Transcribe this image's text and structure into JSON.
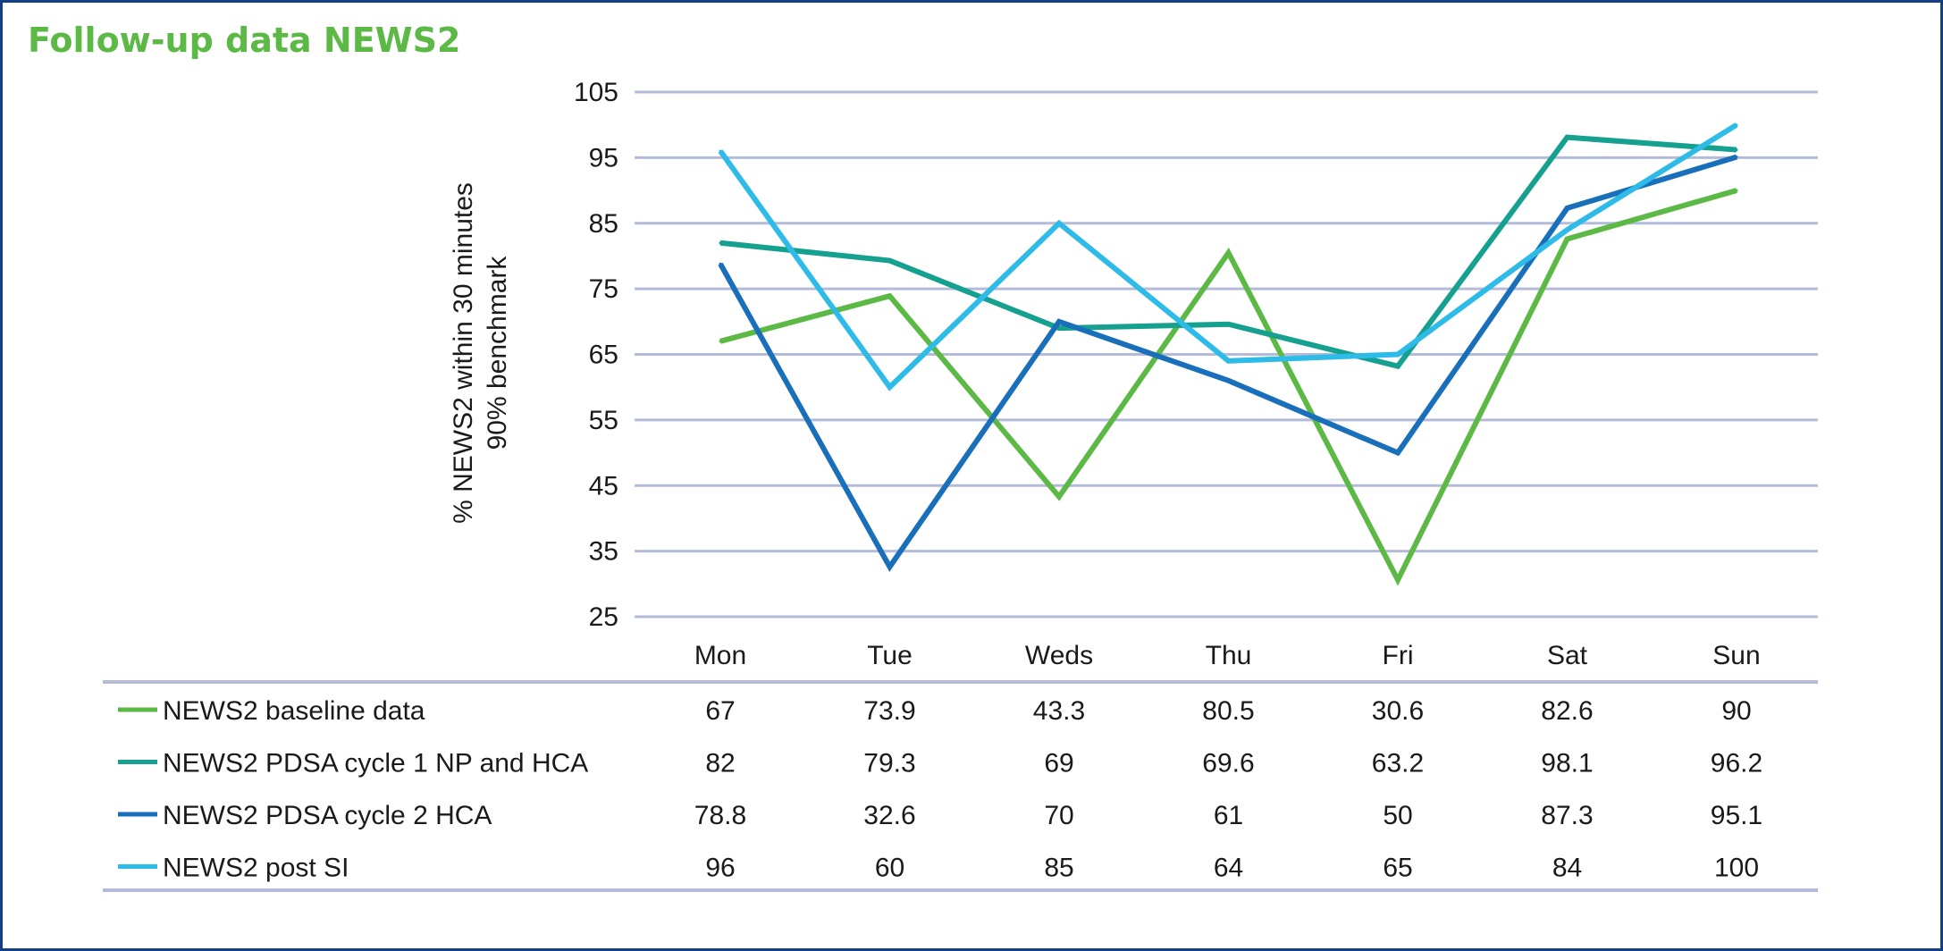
{
  "title": "Follow-up data NEWS2",
  "chart_data": {
    "type": "line",
    "title": "Follow-up data NEWS2",
    "ylabel_lines": [
      "% NEWS2 within 30 minutes",
      "90% benchmark"
    ],
    "xlabel": "",
    "ylim": [
      25,
      105
    ],
    "yticks": [
      25,
      35,
      45,
      55,
      65,
      75,
      85,
      95,
      105
    ],
    "grid": true,
    "legend": "table-below",
    "categories": [
      "Mon",
      "Tue",
      "Weds",
      "Thu",
      "Fri",
      "Sat",
      "Sun"
    ],
    "series": [
      {
        "name": "NEWS2 baseline data",
        "color": "#5cb946",
        "values": [
          67,
          73.9,
          43.3,
          80.5,
          30.6,
          82.6,
          90
        ]
      },
      {
        "name": "NEWS2 PDSA cycle 1 NP and HCA",
        "color": "#15a08f",
        "values": [
          82,
          79.3,
          69,
          69.6,
          63.2,
          98.1,
          96.2
        ]
      },
      {
        "name": "NEWS2 PDSA cycle 2 HCA",
        "color": "#1a6fba",
        "values": [
          78.8,
          32.6,
          70,
          61,
          50,
          87.3,
          95.1
        ]
      },
      {
        "name": "NEWS2 post SI",
        "color": "#2ebbe8",
        "values": [
          96,
          60,
          85,
          64,
          65,
          84,
          100
        ]
      }
    ],
    "colors": {
      "grid": "#b3bbd9",
      "border": "#123f86",
      "title": "#5cb946"
    }
  }
}
